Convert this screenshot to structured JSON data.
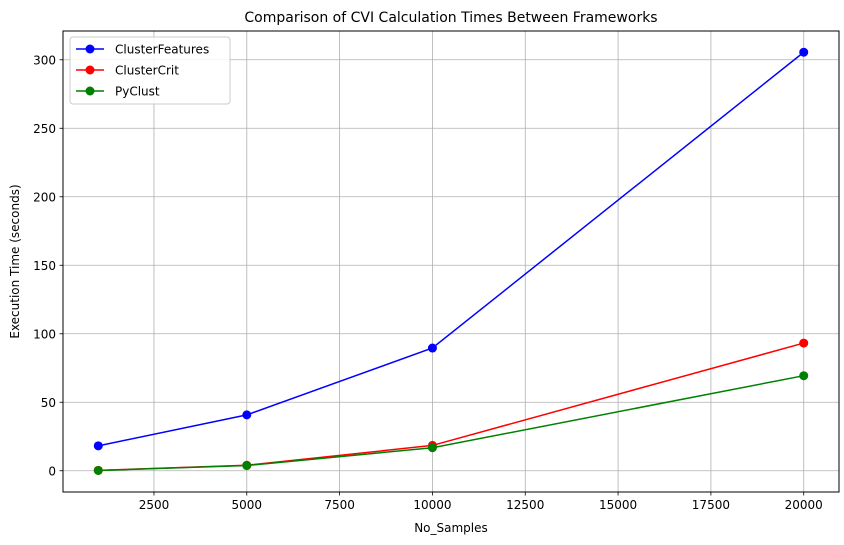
{
  "chart_data": {
    "type": "line",
    "title": "Comparison of CVI Calculation Times Between Frameworks",
    "xlabel": "No_Samples",
    "ylabel": "Execution Time (seconds)",
    "x": [
      1000,
      5000,
      10000,
      20000
    ],
    "xlim": [
      50,
      20950
    ],
    "ylim": [
      -15.5,
      321
    ],
    "xticks": [
      2500,
      5000,
      7500,
      10000,
      12500,
      15000,
      17500,
      20000
    ],
    "yticks": [
      0,
      50,
      100,
      150,
      200,
      250,
      300
    ],
    "grid": true,
    "legend_position": "top-left",
    "series": [
      {
        "name": "ClusterFeatures",
        "color": "#0000ff",
        "values": [
          18.2,
          40.8,
          89.6,
          305.5
        ]
      },
      {
        "name": "ClusterCrit",
        "color": "#ff0000",
        "values": [
          0.3,
          4.0,
          18.5,
          93.2
        ]
      },
      {
        "name": "PyClust",
        "color": "#008000",
        "values": [
          0.2,
          3.8,
          16.8,
          69.4
        ]
      }
    ]
  }
}
